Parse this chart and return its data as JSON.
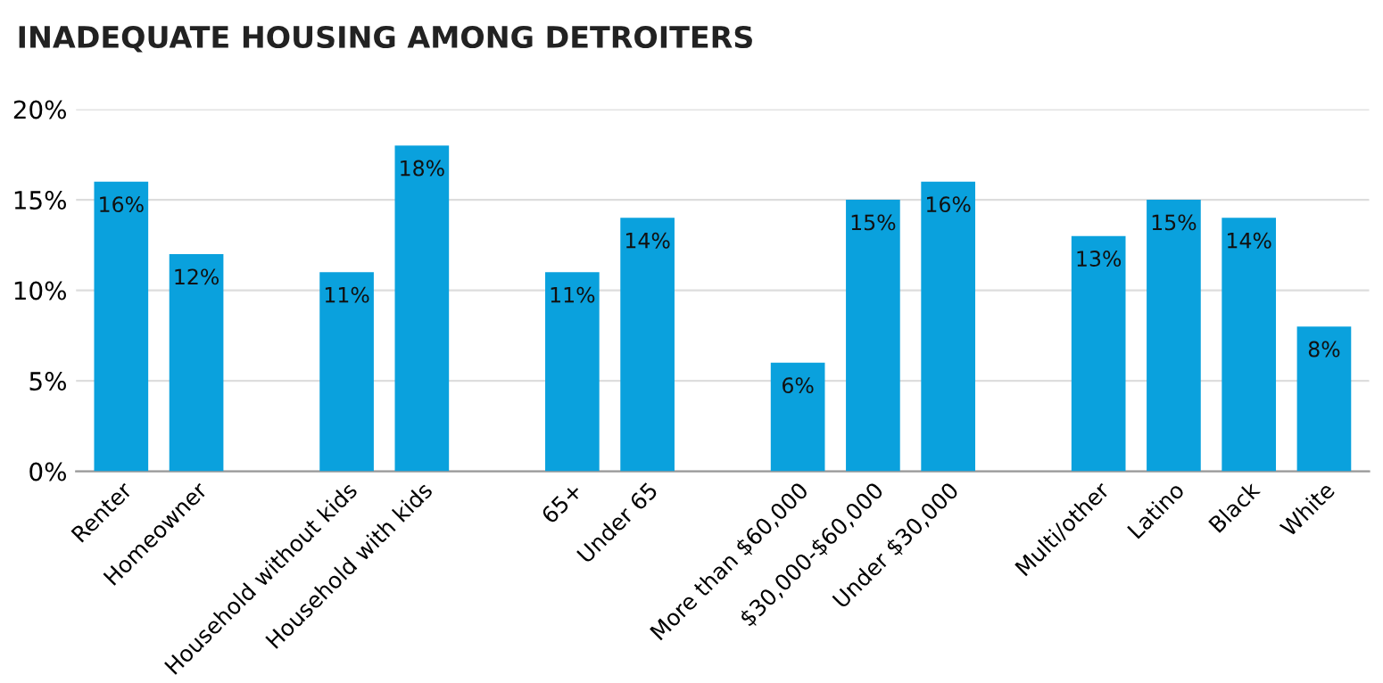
{
  "chart_data": {
    "type": "bar",
    "title": "INADEQUATE HOUSING AMONG DETROITERS",
    "categories": [
      "Renter",
      "Homeowner",
      null,
      "Household without kids",
      "Household with kids",
      null,
      "65+",
      "Under 65",
      null,
      "More than $60,000",
      "$30,000-$60,000",
      "Under $30,000",
      null,
      "Multi/other",
      "Latino",
      "Black",
      "White"
    ],
    "values": [
      16,
      12,
      null,
      11,
      18,
      null,
      11,
      14,
      null,
      6,
      15,
      16,
      null,
      13,
      15,
      14,
      8
    ],
    "value_labels": [
      "16%",
      "12%",
      null,
      "11%",
      "18%",
      null,
      "11%",
      "14%",
      null,
      "6%",
      "15%",
      "16%",
      null,
      "13%",
      "15%",
      "14%",
      "8%"
    ],
    "color": "#0aa1dd",
    "ylim": [
      0,
      20
    ],
    "yticks": [
      {
        "value": 0,
        "label": "0%"
      },
      {
        "value": 5,
        "label": "5%"
      },
      {
        "value": 10,
        "label": "10%"
      },
      {
        "value": 15,
        "label": "15%"
      },
      {
        "value": 20,
        "label": "20%"
      }
    ],
    "grid": "y"
  }
}
